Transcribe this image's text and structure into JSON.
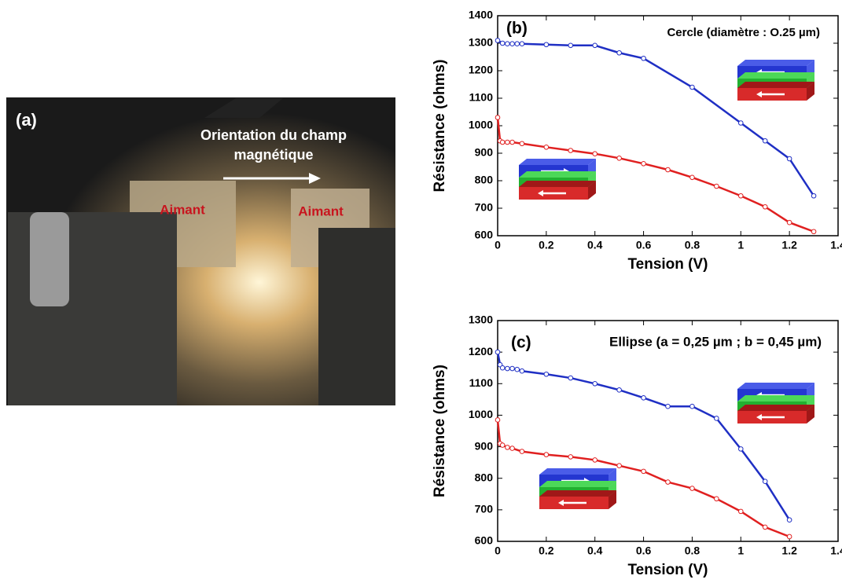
{
  "photo": {
    "label": "(a)",
    "arrow_text": [
      "Orientation du champ",
      "magnétique"
    ],
    "magnets": [
      "Aimant",
      "Aimant"
    ]
  },
  "chart_data": [
    {
      "type": "line",
      "panel_label": "(b)",
      "annotation": "Cercle (diamètre : O.25 µm)",
      "x_label": "Tension (V)",
      "y_label": "Résistance (ohms)",
      "xlim": [
        0,
        1.4
      ],
      "xticks": [
        0,
        0.2,
        0.4,
        0.6,
        0.8,
        1,
        1.2,
        1.4
      ],
      "ylim": [
        600,
        1400
      ],
      "yticks": [
        600,
        700,
        800,
        900,
        1000,
        1100,
        1200,
        1300,
        1400
      ],
      "series": [
        {
          "color": "#1f2fc4",
          "x": [
            0,
            0.02,
            0.04,
            0.06,
            0.08,
            0.1,
            0.2,
            0.3,
            0.4,
            0.5,
            0.6,
            0.8,
            1,
            1.1,
            1.2,
            1.3
          ],
          "values": [
            1310,
            1300,
            1298,
            1298,
            1298,
            1298,
            1295,
            1292,
            1292,
            1265,
            1245,
            1140,
            1010,
            945,
            880,
            745
          ]
        },
        {
          "color": "#e02020",
          "x": [
            0,
            0.01,
            0.02,
            0.04,
            0.06,
            0.1,
            0.2,
            0.3,
            0.4,
            0.5,
            0.6,
            0.7,
            0.8,
            0.9,
            1,
            1.1,
            1.2,
            1.3
          ],
          "values": [
            1030,
            945,
            940,
            940,
            940,
            935,
            922,
            910,
            898,
            882,
            862,
            840,
            812,
            780,
            745,
            705,
            648,
            615
          ]
        }
      ]
    },
    {
      "type": "line",
      "panel_label": "(c)",
      "annotation": "Ellipse (a = 0,25 µm ; b = 0,45 µm)",
      "x_label": "Tension (V)",
      "y_label": "Résistance (ohms)",
      "xlim": [
        0,
        1.4
      ],
      "xticks": [
        0,
        0.2,
        0.4,
        0.6,
        0.8,
        1,
        1.2,
        1.4
      ],
      "ylim": [
        600,
        1300
      ],
      "yticks": [
        600,
        700,
        800,
        900,
        1000,
        1100,
        1200,
        1300
      ],
      "series": [
        {
          "color": "#1f2fc4",
          "x": [
            0,
            0.01,
            0.02,
            0.04,
            0.06,
            0.08,
            0.1,
            0.2,
            0.3,
            0.4,
            0.5,
            0.6,
            0.7,
            0.8,
            0.9,
            1,
            1.1,
            1.2
          ],
          "values": [
            1200,
            1160,
            1150,
            1148,
            1148,
            1145,
            1140,
            1130,
            1118,
            1100,
            1080,
            1055,
            1028,
            1028,
            990,
            893,
            790,
            668
          ]
        },
        {
          "color": "#e02020",
          "x": [
            0,
            0.01,
            0.02,
            0.04,
            0.06,
            0.1,
            0.2,
            0.3,
            0.4,
            0.5,
            0.6,
            0.7,
            0.8,
            0.9,
            1,
            1.1,
            1.2
          ],
          "values": [
            985,
            910,
            905,
            898,
            895,
            885,
            875,
            868,
            858,
            840,
            822,
            788,
            768,
            735,
            695,
            645,
            615
          ]
        }
      ]
    }
  ]
}
